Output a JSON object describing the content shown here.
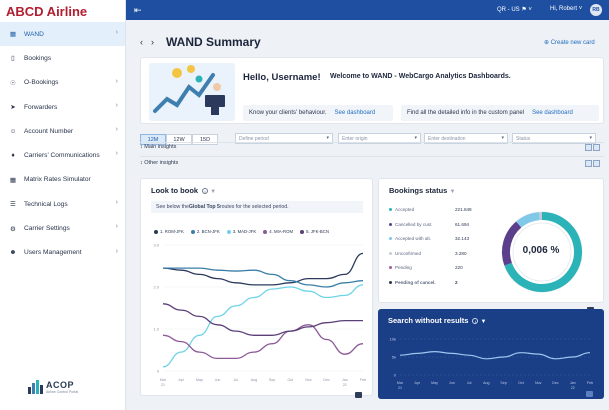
{
  "app": {
    "brand": "ABCD Airline"
  },
  "topbar": {
    "region": "QR - US",
    "user_greeting": "Hi, Robert",
    "avatar_initials": "RB"
  },
  "sidebar": {
    "items": [
      {
        "label": "WAND",
        "icon": "grid-icon",
        "active": true,
        "chevron": true
      },
      {
        "label": "Bookings",
        "icon": "document-icon",
        "active": false,
        "chevron": false
      },
      {
        "label": "O-Bookings",
        "icon": "share-icon",
        "active": false,
        "chevron": true
      },
      {
        "label": "Forwarders",
        "icon": "forward-icon",
        "active": false,
        "chevron": true
      },
      {
        "label": "Account Number",
        "icon": "user-icon",
        "active": false,
        "chevron": true
      },
      {
        "label": "Carriers' Communications",
        "icon": "bell-icon",
        "active": false,
        "chevron": true
      },
      {
        "label": "Matrix Rates Simulator",
        "icon": "calculator-icon",
        "active": false,
        "chevron": false
      },
      {
        "label": "Technical Logs",
        "icon": "log-icon",
        "active": false,
        "chevron": true
      },
      {
        "label": "Carrier Settings",
        "icon": "gear-icon",
        "active": false,
        "chevron": true
      },
      {
        "label": "Users Management",
        "icon": "users-icon",
        "active": false,
        "chevron": true
      }
    ],
    "footer_logo": {
      "name": "ACOP",
      "subtitle": "Airline Control Portal"
    }
  },
  "page": {
    "title": "WAND Summary",
    "create_link": "Create new card"
  },
  "welcome": {
    "hello": "Hello, Username!",
    "tagline": "Welcome to WAND - WebCargo Analytics Dashboards.",
    "card1_text": "Know your clients' behaviour.",
    "card1_link": "See dashboard",
    "card2_text": "Find all the detailed info in the custom panel",
    "card2_link": "See dashboard"
  },
  "filters": {
    "periods": [
      "12M",
      "12W",
      "15D"
    ],
    "selected_period": "12M",
    "period_placeholder": "Define period",
    "origin_placeholder": "Enter origin",
    "destination_placeholder": "Enter destination",
    "status_placeholder": "Status"
  },
  "sections": {
    "main": "Main insights",
    "other": "Other insights"
  },
  "look_to_book": {
    "title": "Look to book",
    "note_prefix": "See below the ",
    "note_bold": "Global Top 5",
    "note_suffix": " routes for the selected period."
  },
  "bookings_status": {
    "title": "Bookings status",
    "rows": [
      {
        "label": "Accepted",
        "value": "221.849",
        "color": "#2bb3b8"
      },
      {
        "label": "Cancelled by cust.",
        "value": "61.694",
        "color": "#5b3f8c"
      },
      {
        "label": "Accepted with alt.",
        "value": "32.143",
        "color": "#7fc8e8"
      },
      {
        "label": "Unconfirmed",
        "value": "3.280",
        "color": "#c9ccd4"
      },
      {
        "label": "Pending",
        "value": "220",
        "color": "#a05d9a"
      },
      {
        "label": "Pending of cancel.",
        "value": "2",
        "color": "#2b3650"
      }
    ],
    "center_value": "0,006 %"
  },
  "search_without_results": {
    "title": "Search without results"
  },
  "chart_data": [
    {
      "type": "line",
      "title": "Look to book",
      "legend": "top",
      "x": [
        "Mar 21",
        "Apr",
        "May",
        "Jun",
        "Jul",
        "Aug",
        "Sep",
        "Oct",
        "Nov",
        "Dec",
        "Jan 22",
        "Feb"
      ],
      "ylim": [
        0,
        3
      ],
      "yticks": [
        "0",
        "1.0",
        "2.0",
        "3.0"
      ],
      "series": [
        {
          "name": "1. ROM-JFK",
          "color": "#2b3a5c",
          "values": [
            2.45,
            2.4,
            2.3,
            2.2,
            2.1,
            2.05,
            2.05,
            2.1,
            2.2,
            2.2,
            2.3,
            2.8
          ]
        },
        {
          "name": "2. BCN-JFK",
          "color": "#3a7ea8",
          "values": [
            2.45,
            2.45,
            2.45,
            2.4,
            2.38,
            2.4,
            2.3,
            2.15,
            2.05,
            2.0,
            2.1,
            2.15
          ]
        },
        {
          "name": "3. MAD-JFK",
          "color": "#6fd3e8",
          "values": [
            0.1,
            0.45,
            0.85,
            1.3,
            1.55,
            1.75,
            1.95,
            2.0,
            1.9,
            1.75,
            1.8,
            2.05
          ]
        },
        {
          "name": "4. MIA-ROM",
          "color": "#8c5a96",
          "values": [
            0.85,
            0.7,
            0.45,
            0.3,
            0.3,
            0.45,
            0.65,
            0.95,
            1.1,
            0.75,
            0.4,
            0.65
          ]
        },
        {
          "name": "5. JFK-BCN",
          "color": "#5a3f78",
          "values": [
            1.6,
            1.45,
            1.3,
            1.1,
            0.95,
            0.85,
            0.85,
            0.95,
            1.05,
            1.15,
            1.2,
            1.2
          ]
        }
      ]
    },
    {
      "type": "pie",
      "title": "Bookings status",
      "categories": [
        "Accepted",
        "Cancelled by cust.",
        "Accepted with alt.",
        "Unconfirmed",
        "Pending",
        "Pending of cancel."
      ],
      "values": [
        221849,
        61694,
        32143,
        3280,
        220,
        2
      ]
    },
    {
      "type": "line",
      "title": "Search without results",
      "x": [
        "Mar 21",
        "Apr",
        "May",
        "Jun",
        "Jul",
        "Aug",
        "Sep",
        "Oct",
        "Nov",
        "Dec",
        "Jan 22",
        "Feb"
      ],
      "yticks": [
        "0",
        "5k",
        "10k"
      ],
      "series": [
        {
          "name": "",
          "color": "#9fc6f0",
          "values": [
            0.55,
            0.6,
            0.65,
            0.6,
            0.55,
            0.45,
            0.5,
            0.62,
            0.58,
            0.45,
            0.5,
            0.62
          ]
        }
      ]
    }
  ]
}
